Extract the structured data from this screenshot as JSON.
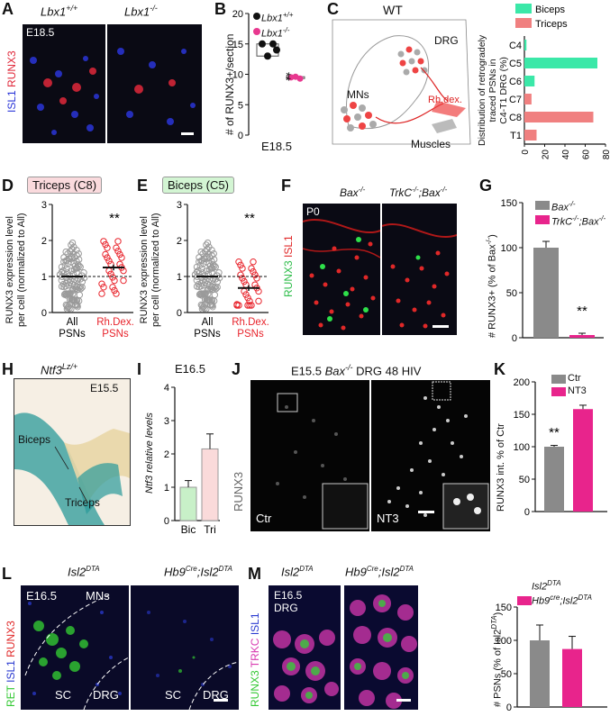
{
  "panels": {
    "A": {
      "letter": "A",
      "geno_left": "Lbx1",
      "geno_left_sup": "+/+",
      "geno_right": "Lbx1",
      "geno_right_sup": "-/-",
      "stage": "E18.5",
      "ylabel_isl1": "ISL1",
      "ylabel_runx3": "RUNX3"
    },
    "B": {
      "letter": "B",
      "legend_wt": "Lbx1",
      "legend_wt_sup": "+/+",
      "legend_ko": "Lbx1",
      "legend_ko_sup": "-/-",
      "ylabel": "# of RUNX3+/section",
      "stage": "E18.5",
      "sig": "**"
    },
    "C": {
      "letter": "C",
      "title": "WT",
      "drg": "DRG",
      "mns": "MNs",
      "rhdex": "Rh.dex.",
      "muscles": "Muscles",
      "legend_biceps": "Biceps",
      "legend_triceps": "Triceps",
      "ylabel_line1": "Distribution of retrogradely",
      "ylabel_line2": "traced PSNs in",
      "ylabel_line3": "C4-T1 DRG (%)"
    },
    "D": {
      "letter": "D",
      "title": "Triceps (C8)",
      "ylabel_line1": "RUNX3 expression level",
      "ylabel_line2": "per cell (normalized to All)",
      "cat1_line1": "All",
      "cat1_line2": "PSNs",
      "cat2_line1": "Rh.Dex.",
      "cat2_line2": "PSNs",
      "sig": "**"
    },
    "E": {
      "letter": "E",
      "title": "Biceps (C5)",
      "ylabel_line1": "RUNX3 expression level",
      "ylabel_line2": "per cell (normalized to All)",
      "cat1_line1": "All",
      "cat1_line2": "PSNs",
      "cat2_line1": "Rh.Dex.",
      "cat2_line2": "PSNs",
      "sig": "**"
    },
    "F": {
      "letter": "F",
      "geno_left": "Bax",
      "geno_left_sup": "-/-",
      "geno_right": "TrkC",
      "geno_right_sup": "-/-",
      "geno_right2": "Bax",
      "geno_right2_sup": "-/-",
      "stage": "P0",
      "ylabel_runx3": "RUNX3",
      "ylabel_isl1": "ISL1"
    },
    "G": {
      "letter": "G",
      "legend1": "Bax",
      "legend1_sup": "-/-",
      "legend2": "TrkC",
      "legend2_sup": "-/-",
      "legend2b": "Bax",
      "legend2b_sup": "-/-",
      "ylabel": "# RUNX3+ (% of Bax",
      "ylabel_sup": "-/-",
      "ylabel_end": ")",
      "sig": "**"
    },
    "H": {
      "letter": "H",
      "geno": "Ntf3",
      "geno_sup": "Lz/+",
      "stage": "E15.5",
      "biceps": "Biceps",
      "triceps": "Triceps"
    },
    "I": {
      "letter": "I",
      "stage": "E16.5",
      "ylabel": "Ntf3 relative levels",
      "cat1": "Bic",
      "cat2": "Tri"
    },
    "J": {
      "letter": "J",
      "title_pre": "E15.5",
      "title_geno": "Bax",
      "title_sup": "-/-",
      "title_post": "DRG 48 HIV",
      "ylabel": "RUNX3",
      "ctr": "Ctr",
      "nt3": "NT3"
    },
    "K": {
      "letter": "K",
      "legend1": "Ctr",
      "legend2": "NT3",
      "ylabel": "RUNX3 int. % of  Ctr",
      "sig": "**"
    },
    "L": {
      "letter": "L",
      "geno_left": "Isl2",
      "geno_left_sup": "DTA",
      "geno_right_a": "Hb9",
      "geno_right_a_sup": "Cre",
      "geno_right_b": "Isl2",
      "geno_right_b_sup": "DTA",
      "stage": "E16.5",
      "mns": "MNs",
      "sc": "SC",
      "drg": "DRG",
      "ylabel_ret": "RET",
      "ylabel_isl1": "ISL1",
      "ylabel_runx3": "RUNX3"
    },
    "M": {
      "letter": "M",
      "geno_left": "Isl2",
      "geno_left_sup": "DTA",
      "geno_right_a": "Hb9",
      "geno_right_a_sup": "Cre",
      "geno_right_b": "Isl2",
      "geno_right_b_sup": "DTA",
      "stage": "E16.5",
      "drg": "DRG",
      "ylabel_runx3": "RUNX3",
      "ylabel_trkc": "TRKC",
      "ylabel_isl1": "ISL1",
      "legend1": "Isl2",
      "legend1_sup": "DTA",
      "legend2": "Hb9",
      "legend2_sup": "cre",
      "legend2b": ";Isl2",
      "legend2b_sup": "DTA",
      "ylabel": "# PSNs (% of Isl2",
      "ylabel_sup": "DTA",
      "ylabel_end": ")"
    }
  },
  "chart_data": [
    {
      "panel": "B",
      "type": "scatter",
      "series": [
        {
          "name": "Lbx1+/+",
          "values": [
            15,
            15,
            13,
            14
          ]
        },
        {
          "name": "Lbx1-/-",
          "values": [
            9.5,
            9.6,
            9.3
          ]
        }
      ],
      "ylim": [
        0,
        20
      ],
      "yticks": [
        0,
        5,
        10,
        15,
        20
      ],
      "ylabel": "# of RUNX3+/section",
      "colors": {
        "wt": "#111111",
        "ko": "#e8388f"
      }
    },
    {
      "panel": "C",
      "type": "bar",
      "categories": [
        "C4",
        "C5",
        "C6",
        "C7",
        "C8",
        "T1"
      ],
      "series": [
        {
          "name": "Biceps",
          "values": [
            2,
            72,
            10,
            0,
            0,
            0
          ]
        },
        {
          "name": "Triceps",
          "values": [
            0,
            0,
            0,
            7,
            68,
            12
          ]
        }
      ],
      "xlim": [
        0,
        80
      ],
      "xticks": [
        0,
        20,
        40,
        60,
        80
      ],
      "colors": {
        "biceps": "#3be8a8",
        "triceps": "#f08080"
      }
    },
    {
      "panel": "D",
      "type": "scatter",
      "categories": [
        "All PSNs",
        "Rh.Dex.+ PSNs"
      ],
      "mean": [
        1.0,
        1.25
      ],
      "ylim": [
        0,
        3
      ],
      "yticks": [
        0,
        1,
        2,
        3
      ],
      "colors": {
        "all": "#9a9a9a",
        "rh": "#e8242c"
      }
    },
    {
      "panel": "E",
      "type": "scatter",
      "categories": [
        "All PSNs",
        "Rh.Dex.+ PSNs"
      ],
      "mean": [
        1.0,
        0.68
      ],
      "ylim": [
        0,
        3
      ],
      "yticks": [
        0,
        1,
        2,
        3
      ],
      "colors": {
        "all": "#9a9a9a",
        "rh": "#e8242c"
      }
    },
    {
      "panel": "G",
      "type": "bar",
      "categories": [
        "Bax-/-",
        "TrkC-/-;Bax-/-"
      ],
      "values": [
        100,
        3
      ],
      "errors": [
        7,
        2
      ],
      "ylim": [
        0,
        150
      ],
      "yticks": [
        0,
        50,
        100,
        150
      ],
      "colors": {
        "bar1": "#8a8a8a",
        "bar2": "#e8248c"
      }
    },
    {
      "panel": "I",
      "type": "bar",
      "categories": [
        "Bic",
        "Tri"
      ],
      "values": [
        1.0,
        2.15
      ],
      "errors": [
        0.2,
        0.45
      ],
      "ylim": [
        0,
        4
      ],
      "yticks": [
        0,
        1,
        2,
        3,
        4
      ],
      "colors": {
        "bar1": "#c8f0c8",
        "bar2": "#fadada"
      }
    },
    {
      "panel": "K",
      "type": "bar",
      "categories": [
        "Ctr",
        "NT3"
      ],
      "values": [
        100,
        158
      ],
      "errors": [
        2,
        6
      ],
      "ylim": [
        0,
        200
      ],
      "yticks": [
        0,
        50,
        100,
        150,
        200
      ],
      "colors": {
        "bar1": "#8a8a8a",
        "bar2": "#e8248c"
      }
    },
    {
      "panel": "M",
      "type": "bar",
      "categories": [
        "Isl2DTA",
        "Hb9cre;Isl2DTA"
      ],
      "values": [
        100,
        87
      ],
      "errors": [
        23,
        19
      ],
      "ylim": [
        0,
        150
      ],
      "yticks": [
        0,
        50,
        100,
        150
      ],
      "colors": {
        "bar1": "#8a8a8a",
        "bar2": "#e8248c"
      }
    }
  ]
}
